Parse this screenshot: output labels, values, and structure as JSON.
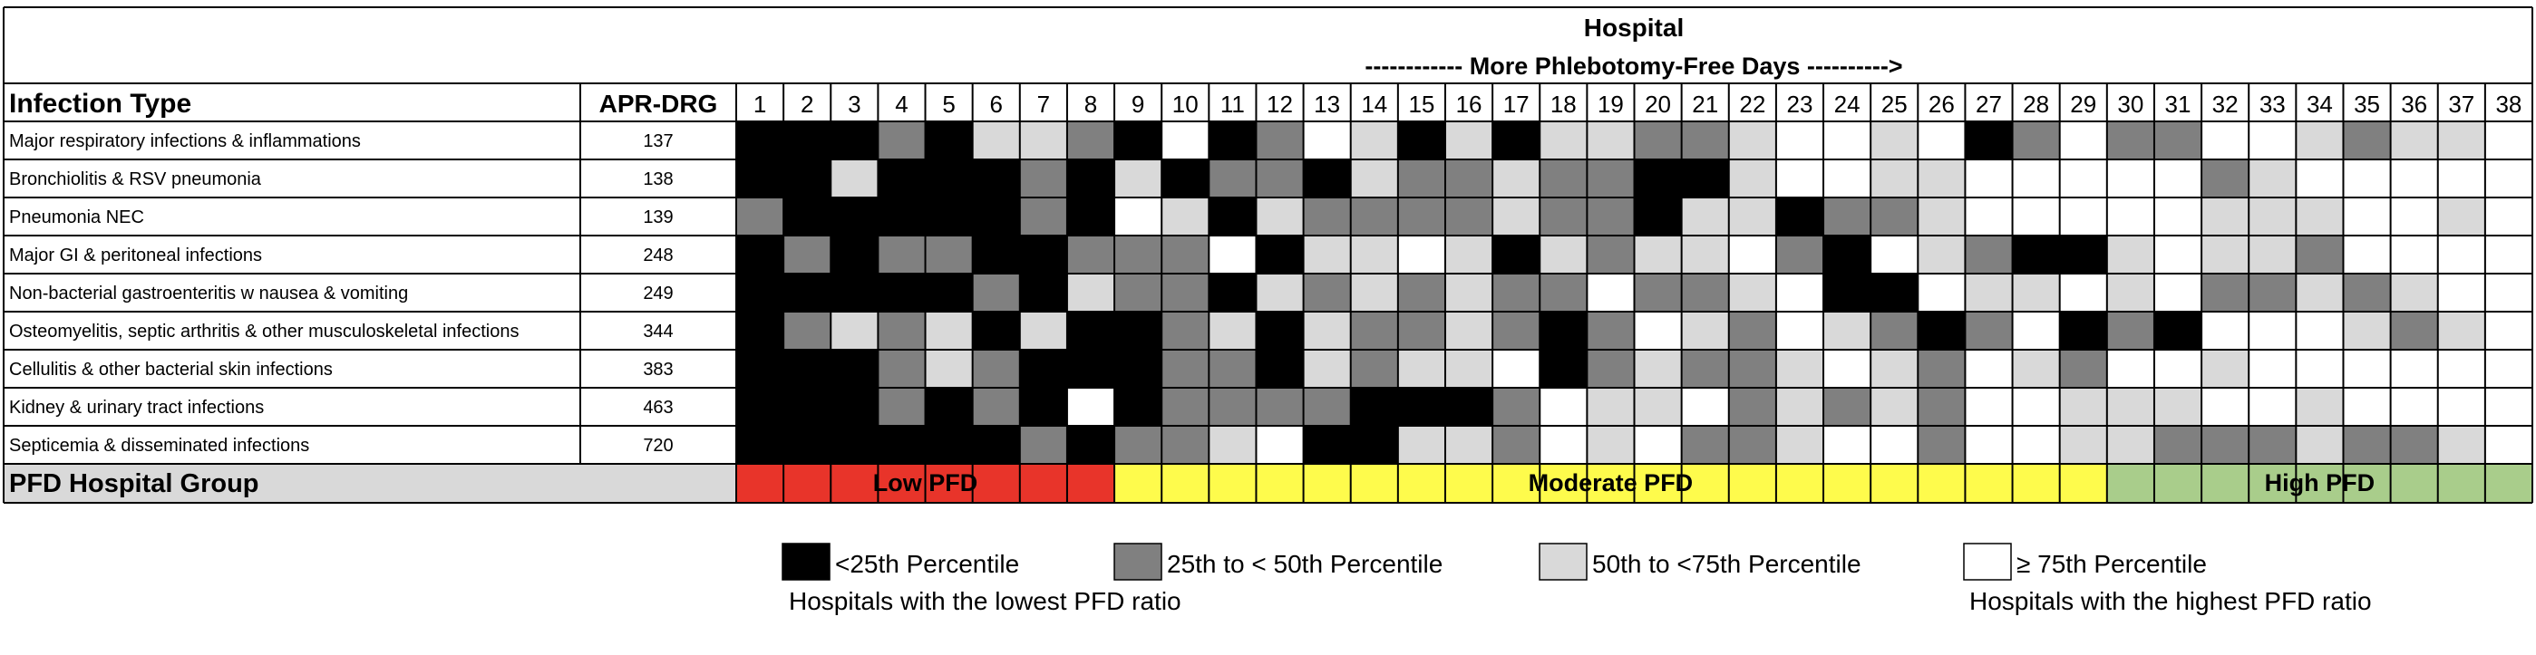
{
  "chart_data": {
    "type": "heatmap",
    "header": {
      "top_label": "Hospital",
      "arrow_label": "------------  More Phlebotomy-Free Days  ---------->"
    },
    "column_headers": {
      "infection_type": "Infection Type",
      "apr_drg": "APR-DRG"
    },
    "hospitals": [
      "1",
      "2",
      "3",
      "4",
      "5",
      "6",
      "7",
      "8",
      "9",
      "10",
      "11",
      "12",
      "13",
      "14",
      "15",
      "16",
      "17",
      "18",
      "19",
      "20",
      "21",
      "22",
      "23",
      "24",
      "25",
      "26",
      "27",
      "28",
      "29",
      "30",
      "31",
      "32",
      "33",
      "34",
      "35",
      "36",
      "37",
      "38"
    ],
    "rows": [
      {
        "label": "Major respiratory infections & inflammations",
        "drg": "137",
        "values": [
          0,
          0,
          0,
          1,
          0,
          2,
          2,
          1,
          0,
          3,
          0,
          1,
          3,
          2,
          0,
          2,
          0,
          2,
          2,
          1,
          1,
          2,
          3,
          3,
          2,
          3,
          0,
          1,
          3,
          1,
          1,
          3,
          3,
          2,
          1,
          2,
          2,
          3
        ]
      },
      {
        "label": "Bronchiolitis & RSV pneumonia",
        "drg": "138",
        "values": [
          0,
          0,
          2,
          0,
          0,
          0,
          1,
          0,
          2,
          0,
          1,
          1,
          0,
          2,
          1,
          1,
          2,
          1,
          1,
          0,
          0,
          2,
          3,
          3,
          2,
          2,
          3,
          3,
          3,
          3,
          3,
          1,
          2,
          3,
          3,
          3,
          3,
          3
        ]
      },
      {
        "label": "Pneumonia NEC",
        "drg": "139",
        "values": [
          1,
          0,
          0,
          0,
          0,
          0,
          1,
          0,
          3,
          2,
          0,
          2,
          1,
          1,
          1,
          1,
          2,
          1,
          1,
          0,
          2,
          2,
          0,
          1,
          1,
          2,
          3,
          3,
          3,
          3,
          3,
          2,
          2,
          2,
          3,
          3,
          2,
          3
        ]
      },
      {
        "label": "Major GI & peritoneal infections",
        "drg": "248",
        "values": [
          0,
          1,
          0,
          1,
          1,
          0,
          0,
          1,
          1,
          1,
          3,
          0,
          2,
          2,
          3,
          2,
          0,
          2,
          1,
          2,
          2,
          3,
          1,
          0,
          3,
          2,
          1,
          0,
          0,
          2,
          3,
          2,
          2,
          1,
          3,
          3,
          3,
          3
        ]
      },
      {
        "label": "Non-bacterial gastroenteritis w nausea & vomiting",
        "drg": "249",
        "values": [
          0,
          0,
          0,
          0,
          0,
          1,
          0,
          2,
          1,
          1,
          0,
          2,
          1,
          2,
          1,
          2,
          1,
          1,
          3,
          1,
          1,
          2,
          3,
          0,
          0,
          3,
          2,
          2,
          3,
          2,
          3,
          1,
          1,
          2,
          1,
          2,
          3,
          3
        ]
      },
      {
        "label": "Osteomyelitis, septic arthritis & other musculoskeletal infections",
        "drg": "344",
        "values": [
          0,
          1,
          2,
          1,
          2,
          0,
          2,
          0,
          0,
          1,
          2,
          0,
          2,
          1,
          1,
          2,
          1,
          0,
          1,
          3,
          2,
          1,
          3,
          2,
          1,
          0,
          1,
          3,
          0,
          1,
          0,
          3,
          3,
          3,
          2,
          1,
          2,
          3
        ]
      },
      {
        "label": "Cellulitis & other bacterial skin infections",
        "drg": "383",
        "values": [
          0,
          0,
          0,
          1,
          2,
          1,
          0,
          0,
          0,
          1,
          1,
          0,
          2,
          1,
          2,
          2,
          3,
          0,
          1,
          2,
          1,
          1,
          2,
          3,
          2,
          1,
          3,
          2,
          1,
          3,
          3,
          2,
          3,
          3,
          3,
          3,
          3,
          3
        ]
      },
      {
        "label": "Kidney & urinary tract infections",
        "drg": "463",
        "values": [
          0,
          0,
          0,
          1,
          0,
          1,
          0,
          3,
          0,
          1,
          1,
          1,
          1,
          0,
          0,
          0,
          1,
          3,
          2,
          2,
          3,
          1,
          2,
          1,
          2,
          1,
          3,
          3,
          2,
          2,
          2,
          3,
          3,
          2,
          3,
          3,
          3,
          3
        ]
      },
      {
        "label": "Septicemia & disseminated infections",
        "drg": "720",
        "values": [
          0,
          0,
          0,
          0,
          0,
          0,
          1,
          0,
          1,
          1,
          2,
          3,
          0,
          0,
          2,
          2,
          1,
          3,
          2,
          3,
          1,
          1,
          2,
          3,
          3,
          1,
          3,
          3,
          2,
          2,
          1,
          1,
          1,
          2,
          1,
          1,
          2,
          3
        ]
      }
    ],
    "groups": {
      "label": "PFD Hospital Group",
      "items": [
        {
          "name": "Low PFD",
          "from": 1,
          "to": 8,
          "color": "#e8342a"
        },
        {
          "name": "Moderate PFD",
          "from": 9,
          "to": 29,
          "color": "#fefb4c"
        },
        {
          "name": "High PFD",
          "from": 30,
          "to": 38,
          "color": "#a9cd8b"
        }
      ]
    },
    "legend": {
      "items": [
        {
          "label": "<25th Percentile",
          "color": "#000000"
        },
        {
          "label": "25th to < 50th Percentile",
          "color": "#808080"
        },
        {
          "label": "50th to <75th Percentile",
          "color": "#d9d9d9"
        },
        {
          "label": "≥ 75th Percentile",
          "color": "#ffffff"
        }
      ],
      "note_low": "Hospitals with the lowest PFD ratio",
      "note_high": "Hospitals with the highest PFD ratio"
    },
    "colors": {
      "group_label_bg": "#d9d9d9",
      "grid": "#000000"
    }
  }
}
